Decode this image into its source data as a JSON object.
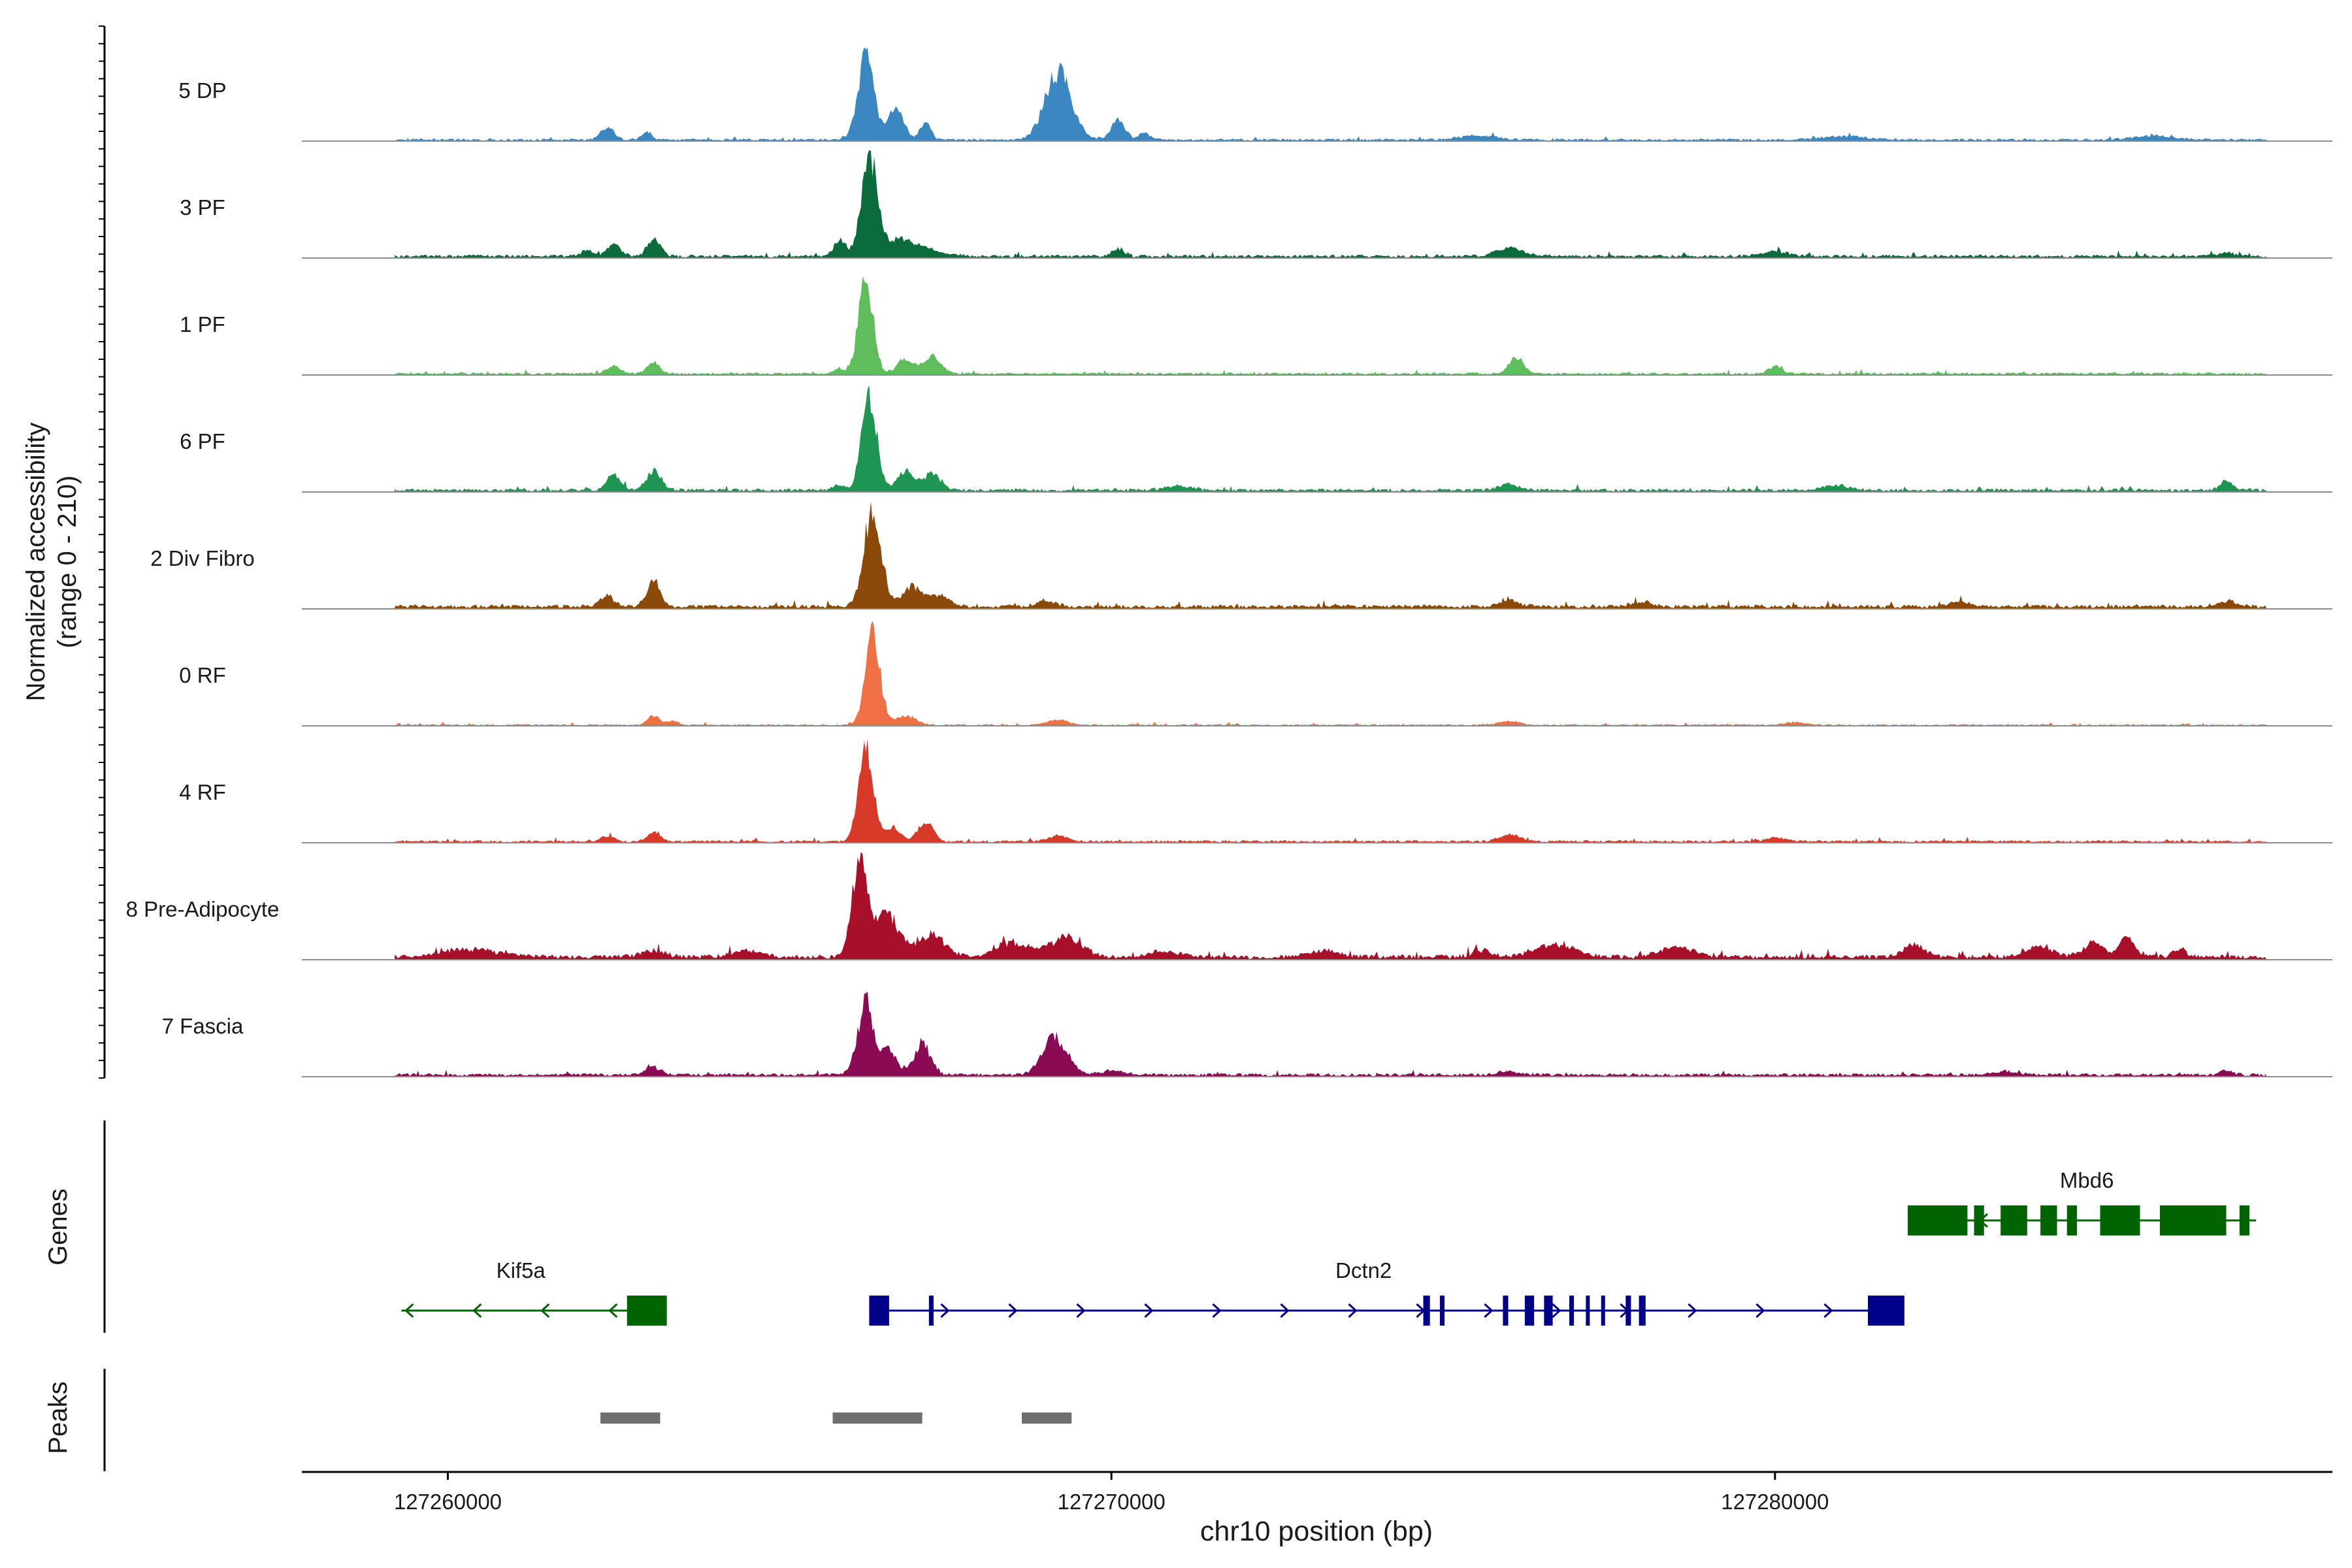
{
  "chart_data": {
    "type": "area",
    "title": "",
    "ylabel_line1": "Normalized accessibility",
    "ylabel_line2": "(range 0 - 210)",
    "xlabel": "chr10 position (bp)",
    "xlim": [
      127257800,
      127288400
    ],
    "ylim": [
      0,
      210
    ],
    "x_ticks": [
      {
        "value": 127260000,
        "label": "127260000"
      },
      {
        "value": 127270000,
        "label": "127270000"
      },
      {
        "value": 127280000,
        "label": "127280000"
      }
    ],
    "track_range": [
      127259200,
      127287400
    ],
    "tracks": [
      {
        "name": "5 DP",
        "color": "#3a87c2",
        "baseline": 3,
        "peaks": [
          [
            127262400,
            25,
            100
          ],
          [
            127263000,
            18,
            70
          ],
          [
            127266300,
            180,
            120
          ],
          [
            127266750,
            70,
            120
          ],
          [
            127267200,
            35,
            80
          ],
          [
            127269200,
            140,
            200
          ],
          [
            127270100,
            45,
            100
          ],
          [
            127270500,
            15,
            80
          ],
          [
            127275500,
            8,
            300
          ],
          [
            127281000,
            8,
            300
          ],
          [
            127285700,
            8,
            300
          ]
        ]
      },
      {
        "name": "3 PF",
        "color": "#0b6b3a",
        "baseline": 4,
        "peaks": [
          [
            127262100,
            12,
            100
          ],
          [
            127262500,
            25,
            100
          ],
          [
            127263100,
            40,
            90
          ],
          [
            127265900,
            30,
            80
          ],
          [
            127266350,
            200,
            110
          ],
          [
            127266750,
            35,
            400
          ],
          [
            127270100,
            18,
            80
          ],
          [
            127276000,
            18,
            200
          ],
          [
            127280000,
            10,
            200
          ],
          [
            127286800,
            10,
            100
          ]
        ]
      },
      {
        "name": "1 PF",
        "color": "#5fbd5c",
        "baseline": 3,
        "peaks": [
          [
            127262500,
            18,
            100
          ],
          [
            127263100,
            25,
            90
          ],
          [
            127265900,
            10,
            80
          ],
          [
            127266300,
            200,
            110
          ],
          [
            127266900,
            30,
            130
          ],
          [
            127267300,
            35,
            130
          ],
          [
            127276100,
            35,
            110
          ],
          [
            127280000,
            15,
            100
          ]
        ]
      },
      {
        "name": "6 PF",
        "color": "#1f9552",
        "baseline": 4,
        "peaks": [
          [
            127262500,
            35,
            100
          ],
          [
            127263100,
            40,
            110
          ],
          [
            127265900,
            12,
            80
          ],
          [
            127266350,
            205,
            110
          ],
          [
            127266900,
            40,
            130
          ],
          [
            127267300,
            35,
            130
          ],
          [
            127271000,
            8,
            200
          ],
          [
            127276000,
            12,
            150
          ],
          [
            127280900,
            10,
            200
          ],
          [
            127286800,
            18,
            100
          ]
        ]
      },
      {
        "name": "2 Div Fibro",
        "color": "#8c4a0a",
        "baseline": 5,
        "peaks": [
          [
            127262400,
            25,
            100
          ],
          [
            127263100,
            55,
            100
          ],
          [
            127266400,
            205,
            130
          ],
          [
            127267000,
            40,
            150
          ],
          [
            127267400,
            25,
            150
          ],
          [
            127269000,
            12,
            150
          ],
          [
            127276000,
            12,
            150
          ],
          [
            127278000,
            10,
            150
          ],
          [
            127282800,
            10,
            150
          ],
          [
            127286800,
            12,
            150
          ]
        ]
      },
      {
        "name": "0 RF",
        "color": "#f07045",
        "baseline": 2,
        "peaks": [
          [
            127263100,
            20,
            90
          ],
          [
            127263400,
            8,
            80
          ],
          [
            127266400,
            200,
            110
          ],
          [
            127266900,
            20,
            150
          ],
          [
            127269200,
            12,
            150
          ],
          [
            127276000,
            8,
            150
          ],
          [
            127280300,
            6,
            150
          ]
        ]
      },
      {
        "name": "4 RF",
        "color": "#d83a2a",
        "baseline": 3,
        "peaks": [
          [
            127262400,
            10,
            100
          ],
          [
            127263100,
            18,
            100
          ],
          [
            127266300,
            200,
            110
          ],
          [
            127266700,
            30,
            120
          ],
          [
            127267200,
            45,
            110
          ],
          [
            127269200,
            12,
            150
          ],
          [
            127276000,
            15,
            150
          ],
          [
            127280000,
            8,
            150
          ]
        ]
      },
      {
        "name": "8 Pre-Adipocyte",
        "color": "#a8102a",
        "baseline": 6,
        "peaks": [
          [
            127260300,
            15,
            400
          ],
          [
            127263100,
            12,
            200
          ],
          [
            127264500,
            14,
            200
          ],
          [
            127266200,
            200,
            110
          ],
          [
            127266600,
            90,
            200
          ],
          [
            127267300,
            45,
            200
          ],
          [
            127268500,
            30,
            250
          ],
          [
            127269300,
            40,
            250
          ],
          [
            127270800,
            12,
            200
          ],
          [
            127273200,
            14,
            200
          ],
          [
            127275600,
            14,
            150
          ],
          [
            127276700,
            26,
            300
          ],
          [
            127278500,
            20,
            250
          ],
          [
            127282100,
            24,
            150
          ],
          [
            127284000,
            22,
            200
          ],
          [
            127284800,
            30,
            150
          ],
          [
            127285300,
            40,
            120
          ],
          [
            127286100,
            18,
            100
          ]
        ]
      },
      {
        "name": "7 Fascia",
        "color": "#8a0a54",
        "baseline": 4,
        "peaks": [
          [
            127263100,
            18,
            100
          ],
          [
            127266300,
            150,
            120
          ],
          [
            127266650,
            55,
            110
          ],
          [
            127267150,
            65,
            120
          ],
          [
            127269150,
            80,
            180
          ],
          [
            127270000,
            8,
            200
          ],
          [
            127276000,
            6,
            200
          ],
          [
            127283500,
            6,
            200
          ],
          [
            127286800,
            8,
            100
          ]
        ]
      }
    ],
    "genes_label": "Genes",
    "genes": [
      {
        "name": "Kif5a",
        "color": "#006400",
        "strand": "-",
        "start": 127259300,
        "end": 127263300,
        "row": 2,
        "exons": [
          [
            127262700,
            127263300
          ]
        ]
      },
      {
        "name": "Dctn2",
        "color": "#00008b",
        "strand": "+",
        "start": 127266350,
        "end": 127281950,
        "row": 2,
        "exons": [
          [
            127266350,
            127266650
          ],
          [
            127267250,
            127267320
          ],
          [
            127274700,
            127274800
          ],
          [
            127274950,
            127275020
          ],
          [
            127275900,
            127275980
          ],
          [
            127276230,
            127276370
          ],
          [
            127276520,
            127276650
          ],
          [
            127276900,
            127276970
          ],
          [
            127277150,
            127277200
          ],
          [
            127277380,
            127277430
          ],
          [
            127277750,
            127277830
          ],
          [
            127277950,
            127278050
          ],
          [
            127281400,
            127281950
          ]
        ]
      },
      {
        "name": "Mbd6",
        "color": "#006400",
        "strand": "-",
        "start": 127282000,
        "end": 127287250,
        "row": 1,
        "exons": [
          [
            127282000,
            127282900
          ],
          [
            127283000,
            127283150
          ],
          [
            127283400,
            127283800
          ],
          [
            127284000,
            127284250
          ],
          [
            127284400,
            127284550
          ],
          [
            127284900,
            127285500
          ],
          [
            127285800,
            127286800
          ],
          [
            127287000,
            127287150
          ]
        ]
      }
    ],
    "peaks_label": "Peaks",
    "peak_regions": [
      [
        127262300,
        127263200
      ],
      [
        127265800,
        127267150
      ],
      [
        127268650,
        127269400
      ]
    ]
  }
}
